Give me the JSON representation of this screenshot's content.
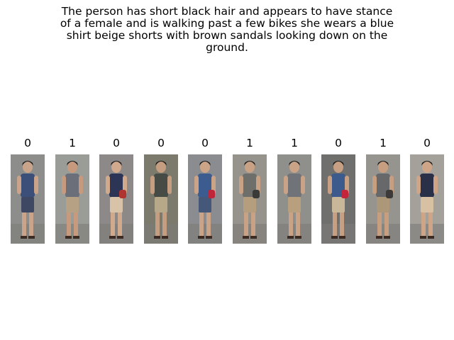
{
  "caption": "The person has short black hair and appears to have stance\nof a female and is walking past a few bikes she wears a blue\nshirt beige shorts with brown sandals looking down on the\nground.",
  "images": [
    {
      "label": "0",
      "bg": "#8d8e8c",
      "shirt": "#3c4f78",
      "pants": "#3f4863",
      "skin": "#c9a48a",
      "bag": "none"
    },
    {
      "label": "1",
      "bg": "#9a9c98",
      "shirt": "#6a6f79",
      "pants": "#b6a185",
      "skin": "#c79a7e",
      "bag": "none"
    },
    {
      "label": "0",
      "bg": "#8c8988",
      "shirt": "#2d3556",
      "pants": "#d8c3a8",
      "skin": "#d1a98d",
      "bag": "#b0342f"
    },
    {
      "label": "0",
      "bg": "#7c7a6c",
      "shirt": "#464c45",
      "pants": "#b7a88a",
      "skin": "#c59d80",
      "bag": "none"
    },
    {
      "label": "0",
      "bg": "#8b8c8f",
      "shirt": "#3c5c8f",
      "pants": "#45587a",
      "skin": "#cba487",
      "bag": "#c0263a"
    },
    {
      "label": "1",
      "bg": "#96928c",
      "shirt": "#6e6e6b",
      "pants": "#b59e7e",
      "skin": "#c9a184",
      "bag": "#3a3a38"
    },
    {
      "label": "1",
      "bg": "#8f908b",
      "shirt": "#707479",
      "pants": "#b8a07f",
      "skin": "#caa286",
      "bag": "none"
    },
    {
      "label": "0",
      "bg": "#6f6f6e",
      "shirt": "#3d5a8c",
      "pants": "#c9b79a",
      "skin": "#c79f82",
      "bag": "#c3263b"
    },
    {
      "label": "1",
      "bg": "#95948f",
      "shirt": "#66686a",
      "pants": "#ad9779",
      "skin": "#c89e81",
      "bag": "#3c3b39"
    },
    {
      "label": "0",
      "bg": "#a4a19b",
      "shirt": "#2b3049",
      "pants": "#d8c0a2",
      "skin": "#cfa588",
      "bag": "none"
    }
  ]
}
